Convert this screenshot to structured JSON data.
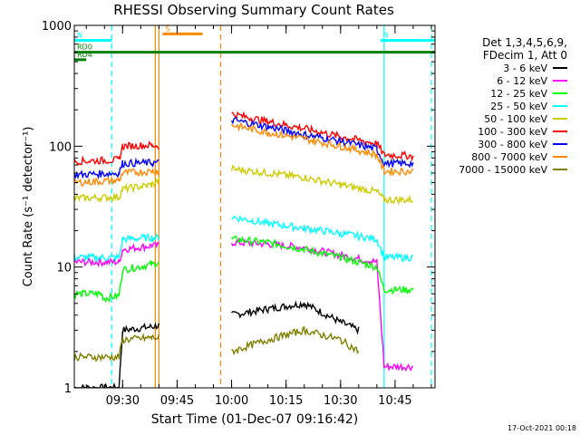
{
  "chart_data": {
    "type": "line",
    "title": "RHESSI Observing Summary Count Rates",
    "xlabel": "Start Time (01-Dec-07 09:16:42)",
    "ylabel": "Count Rate (s⁻¹ detector⁻¹)",
    "y_scale": "log",
    "ylim": [
      1,
      1000
    ],
    "y_ticks": [
      {
        "value": 1,
        "label": "1"
      },
      {
        "value": 10,
        "label": "10"
      },
      {
        "value": 100,
        "label": "100"
      },
      {
        "value": 1000,
        "label": "1000"
      }
    ],
    "xlim": [
      "09:16:42",
      "10:56:00"
    ],
    "x_ticks": [
      "09:30",
      "09:45",
      "10:00",
      "10:15",
      "10:30",
      "10:45"
    ],
    "legend_header": [
      "Det 1,3,4,5,6,9,",
      "FDecim 1, Att 0"
    ],
    "legend_position": "right",
    "series": [
      {
        "name": "3 - 6 keV",
        "color": "#000000",
        "segments": [
          {
            "x": [
              "09:16:42",
              "09:29",
              "09:30",
              "09:38",
              "09:40"
            ],
            "y": [
              1,
              1,
              3,
              3.2,
              3.3
            ]
          },
          {
            "x": [
              "10:00",
              "10:10",
              "10:20",
              "10:30",
              "10:35"
            ],
            "y": [
              4,
              4.5,
              5,
              3.5,
              3
            ]
          }
        ]
      },
      {
        "name": "6 - 12 keV",
        "color": "#ff00ff",
        "segments": [
          {
            "x": [
              "09:16:42",
              "09:29",
              "09:30",
              "09:38",
              "09:40"
            ],
            "y": [
              11,
              11,
              14,
              15,
              15
            ]
          },
          {
            "x": [
              "10:00",
              "10:10",
              "10:20",
              "10:30",
              "10:40",
              "10:42",
              "10:50"
            ],
            "y": [
              16,
              15.5,
              14.5,
              12.5,
              11,
              1.5,
              1.5
            ]
          }
        ]
      },
      {
        "name": "12 - 25 keV",
        "color": "#00ff00",
        "segments": [
          {
            "x": [
              "09:16:42",
              "09:24",
              "09:25",
              "09:29",
              "09:30",
              "09:38",
              "09:40"
            ],
            "y": [
              6,
              6,
              5.5,
              5.8,
              9.5,
              10.5,
              11
            ]
          },
          {
            "x": [
              "10:00",
              "10:10",
              "10:20",
              "10:30",
              "10:40",
              "10:42",
              "10:50"
            ],
            "y": [
              17,
              16,
              14,
              12,
              10,
              6.5,
              6.5
            ]
          }
        ]
      },
      {
        "name": "25 - 50 keV",
        "color": "#00ffff",
        "segments": [
          {
            "x": [
              "09:16:42",
              "09:29",
              "09:30",
              "09:38",
              "09:40"
            ],
            "y": [
              12,
              12,
              17,
              17.5,
              17.5
            ]
          },
          {
            "x": [
              "10:00",
              "10:10",
              "10:20",
              "10:30",
              "10:40",
              "10:42",
              "10:50"
            ],
            "y": [
              26,
              23,
              21,
              19,
              17,
              12,
              12
            ]
          }
        ]
      },
      {
        "name": "50 - 100 keV",
        "color": "#cccc00",
        "segments": [
          {
            "x": [
              "09:16:42",
              "09:29",
              "09:30",
              "09:38",
              "09:40"
            ],
            "y": [
              37,
              38,
              44,
              48,
              52
            ]
          },
          {
            "x": [
              "10:00",
              "10:10",
              "10:20",
              "10:30",
              "10:40",
              "10:42",
              "10:50"
            ],
            "y": [
              65,
              60,
              55,
              48,
              42,
              36,
              36
            ]
          }
        ]
      },
      {
        "name": "100 - 300 keV",
        "color": "#ff0000",
        "segments": [
          {
            "x": [
              "09:16:42",
              "09:29",
              "09:30",
              "09:38",
              "09:40"
            ],
            "y": [
              75,
              77,
              100,
              102,
              100
            ]
          },
          {
            "x": [
              "10:00",
              "10:10",
              "10:20",
              "10:30",
              "10:40",
              "10:42",
              "10:50"
            ],
            "y": [
              185,
              160,
              140,
              120,
              105,
              85,
              83
            ]
          }
        ]
      },
      {
        "name": "300 - 800 keV",
        "color": "#0000ff",
        "segments": [
          {
            "x": [
              "09:16:42",
              "09:29",
              "09:30",
              "09:38",
              "09:40"
            ],
            "y": [
              58,
              60,
              72,
              73,
              73
            ]
          },
          {
            "x": [
              "10:00",
              "10:10",
              "10:20",
              "10:30",
              "10:40",
              "10:42",
              "10:50"
            ],
            "y": [
              165,
              145,
              125,
              110,
              95,
              72,
              72
            ]
          }
        ]
      },
      {
        "name": "800 - 7000 keV",
        "color": "#ff8800",
        "segments": [
          {
            "x": [
              "09:16:42",
              "09:29",
              "09:30",
              "09:38",
              "09:40"
            ],
            "y": [
              50,
              52,
              60,
              62,
              62
            ]
          },
          {
            "x": [
              "10:00",
              "10:10",
              "10:20",
              "10:30",
              "10:40",
              "10:42",
              "10:50"
            ],
            "y": [
              150,
              130,
              115,
              100,
              85,
              62,
              62
            ]
          }
        ]
      },
      {
        "name": "7000 - 15000 keV",
        "color": "#808000",
        "segments": [
          {
            "x": [
              "09:16:42",
              "09:29",
              "09:30",
              "09:38",
              "09:40"
            ],
            "y": [
              1.8,
              1.8,
              2.5,
              2.6,
              2.6
            ]
          },
          {
            "x": [
              "10:00",
              "10:10",
              "10:20",
              "10:30",
              "10:35"
            ],
            "y": [
              2,
              2.5,
              3,
              2.5,
              2
            ]
          }
        ]
      }
    ],
    "flags": [
      {
        "label": "N",
        "color": "#00ffff",
        "x": [
          "09:16:42",
          "09:27"
        ],
        "y": 750
      },
      {
        "label": "N",
        "color": "#00ffff",
        "x": [
          "10:41",
          "10:56"
        ],
        "y": 750
      },
      {
        "label": "S",
        "color": "#ff8800",
        "x": [
          "09:41",
          "09:52"
        ],
        "y": 850
      },
      {
        "label": "RD0",
        "color": "#008000",
        "x": [
          "09:16:42",
          "10:56"
        ],
        "y": 600
      },
      {
        "label": "RD4",
        "color": "#008000",
        "x": [
          "09:16:42",
          "09:20"
        ],
        "y": 520
      }
    ],
    "markers": [
      {
        "x": "09:27",
        "color": "#00ffff",
        "style": "dashed"
      },
      {
        "x": "09:39",
        "color": "#ff8800",
        "style": "solid"
      },
      {
        "x": "09:40",
        "color": "#ff8800",
        "style": "solid"
      },
      {
        "x": "09:57",
        "color": "#ff8800",
        "style": "dashed"
      },
      {
        "x": "10:42",
        "color": "#00ffff",
        "style": "solid"
      },
      {
        "x": "10:55",
        "color": "#00ffff",
        "style": "dashed"
      }
    ],
    "grid": false
  },
  "timestamp": "17-Oct-2021 00:18"
}
